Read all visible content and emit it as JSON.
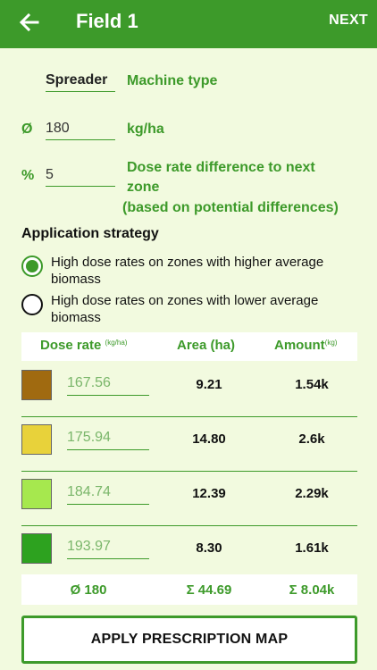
{
  "appbar": {
    "title": "Field 1",
    "next_label": "NEXT"
  },
  "machine": {
    "value": "Spreader",
    "label": "Machine type"
  },
  "dose": {
    "prefix": "Ø",
    "value": "180",
    "unit": "kg/ha"
  },
  "difference": {
    "prefix": "%",
    "value": "5",
    "label_line1": "Dose rate difference to next",
    "label_line2": "zone",
    "label_line3": "(based on potential differences)"
  },
  "strategy": {
    "title": "Application strategy",
    "options": [
      {
        "label": "High dose rates on zones with higher average biomass",
        "selected": true
      },
      {
        "label": "High dose rates on zones with lower average biomass",
        "selected": false
      }
    ]
  },
  "table": {
    "headers": {
      "dose_rate": "Dose rate",
      "dose_rate_unit": "(kg/ha)",
      "area": "Area (ha)",
      "amount": "Amount",
      "amount_unit": "(kg)"
    },
    "rows": [
      {
        "color": "#a06a10",
        "rate": "167.56",
        "area": "9.21",
        "amount": "1.54k"
      },
      {
        "color": "#e8d23a",
        "rate": "175.94",
        "area": "14.80",
        "amount": "2.6k"
      },
      {
        "color": "#a6e84e",
        "rate": "184.74",
        "area": "12.39",
        "amount": "2.29k"
      },
      {
        "color": "#2da21f",
        "rate": "193.97",
        "area": "8.30",
        "amount": "1.61k"
      }
    ],
    "totals": {
      "rate": "Ø 180",
      "area": "Σ 44.69",
      "amount": "Σ 8.04k"
    }
  },
  "apply_label": "APPLY PRESCRIPTION MAP",
  "colors": {
    "brand_green": "#3d9a2a",
    "background": "#f2fadf"
  }
}
